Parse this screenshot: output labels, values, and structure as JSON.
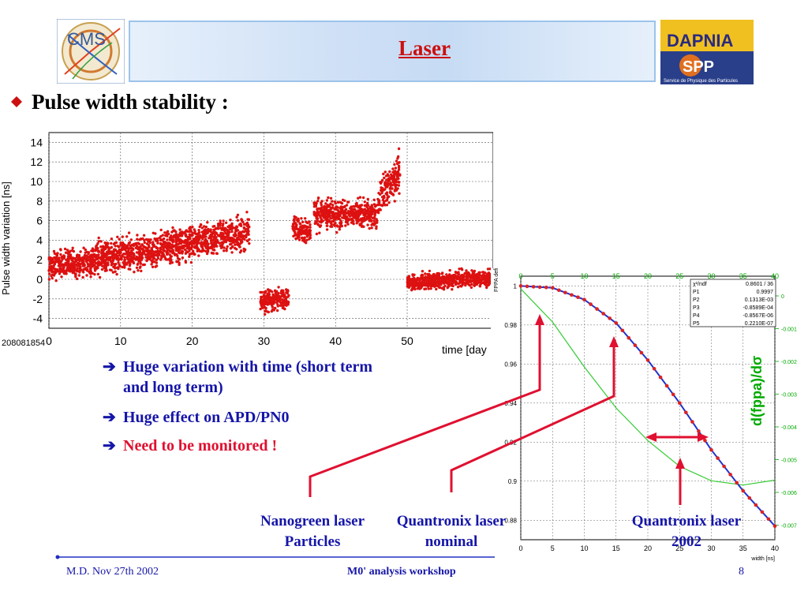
{
  "slide": {
    "title": "Laser",
    "subtitle": "Pulse width stability :",
    "bullets": [
      {
        "line1": "Huge variation with time (short term",
        "line2": "and long term)"
      },
      {
        "line1": "Huge effect on APD/PN0"
      },
      {
        "line1": "Need to be monitored !"
      }
    ],
    "arrow_glyph": "➔",
    "labels": {
      "nanogreen_line1": "Nanogreen laser",
      "nanogreen_line2": "Particles",
      "quantronix_nominal_line1": "Quantronix laser",
      "quantronix_nominal_line2": "nominal",
      "quantronix_2002_line1": "Quantronix laser",
      "quantronix_2002_line2": "2002"
    },
    "footer": {
      "left": "M.D. Nov 27th 2002",
      "center": "M0' analysis workshop",
      "right": "8"
    },
    "logos": {
      "cms": "CMS",
      "dapnia": "DAPNIA",
      "sepp": "SPP",
      "sepp_caption": "Service de Physique des Particules"
    },
    "colors": {
      "title": "#cc1010",
      "text_blue": "#1515a8",
      "alert_red": "#e01030",
      "marker_red": "#dd1111"
    }
  },
  "chart_data": [
    {
      "type": "scatter",
      "ylabel": "Pulse width variation [ns]",
      "xlabel": "time [day",
      "run_label": "208081854",
      "xlim": [
        0,
        62
      ],
      "ylim": [
        -5,
        15
      ],
      "x_ticks": [
        0,
        10,
        20,
        30,
        40,
        50
      ],
      "y_ticks": [
        -4,
        -2,
        0,
        2,
        4,
        6,
        8,
        10,
        12,
        14
      ],
      "grid": true,
      "segments": [
        {
          "x": [
            0,
            6
          ],
          "y_mid": [
            1.6,
            1.8
          ],
          "spread": 1.3
        },
        {
          "x": [
            6,
            28
          ],
          "y_mid": [
            2.0,
            4.8
          ],
          "spread": 1.6
        },
        {
          "x": [
            29.5,
            33.5
          ],
          "y_mid": [
            -2.3,
            -2.0
          ],
          "spread": 1.0
        },
        {
          "x": [
            34,
            36.5
          ],
          "y_mid": [
            5.3,
            4.8
          ],
          "spread": 1.2
        },
        {
          "x": [
            37,
            46
          ],
          "y_mid": [
            6.6,
            6.8
          ],
          "spread": 1.4
        },
        {
          "x": [
            46,
            49
          ],
          "y_mid": [
            8.5,
            11.0
          ],
          "spread": 1.8
        },
        {
          "x": [
            50,
            62
          ],
          "y_mid": [
            -0.3,
            0.2
          ],
          "spread": 0.8
        }
      ]
    },
    {
      "type": "line",
      "ylabel": "FPPA deficit",
      "xlabel": "width [ns]",
      "right_axis_label": "d(fppa)/dσ",
      "xlim": [
        0,
        40
      ],
      "ylim": [
        0.87,
        1.005
      ],
      "x_ticks": [
        0,
        5,
        10,
        15,
        20,
        25,
        30,
        35,
        40
      ],
      "y_ticks": [
        0.88,
        0.9,
        0.92,
        0.94,
        0.96,
        0.98,
        1
      ],
      "right_ticks": [
        "0",
        "-0.001",
        "-0.002",
        "-0.003",
        "-0.004",
        "-0.005",
        "-0.006",
        "-0.007"
      ],
      "grid": true,
      "fit_params": [
        {
          "name": "χ²/ndf",
          "value": "0.8601  /  36"
        },
        {
          "name": "P1",
          "value": "0.9997"
        },
        {
          "name": "P2",
          "value": "0.1313E-03"
        },
        {
          "name": "P3",
          "value": "-0.8589E-04"
        },
        {
          "name": "P4",
          "value": "-0.8567E-06"
        },
        {
          "name": "P5",
          "value": "0.2210E-07"
        }
      ],
      "series": [
        {
          "name": "fit",
          "x": [
            0,
            5,
            10,
            15,
            20,
            25,
            30,
            35,
            40
          ],
          "y": [
            1.0,
            0.999,
            0.993,
            0.981,
            0.962,
            0.94,
            0.916,
            0.895,
            0.877
          ]
        },
        {
          "name": "derivative",
          "x": [
            0,
            5,
            10,
            15,
            20,
            25,
            30,
            35,
            40
          ],
          "y": [
            0.9985,
            0.9815,
            0.9585,
            0.9375,
            0.9208,
            0.9076,
            0.9002,
            0.898,
            0.9005
          ]
        }
      ]
    }
  ]
}
